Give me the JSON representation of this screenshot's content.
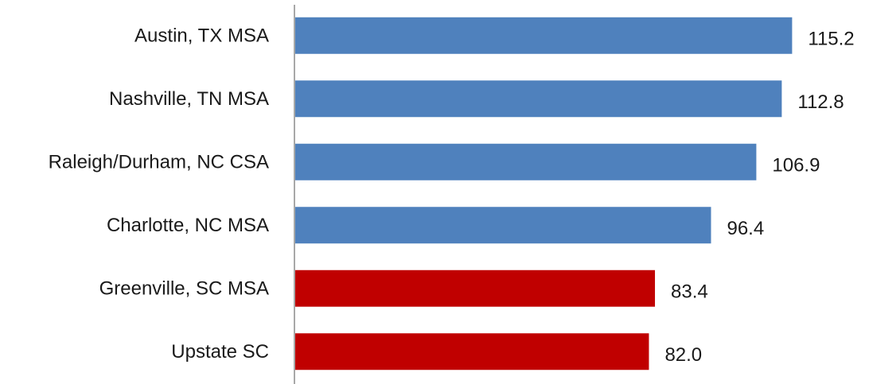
{
  "chart_data": {
    "type": "bar",
    "orientation": "horizontal",
    "title": "",
    "xlabel": "",
    "ylabel": "",
    "categories": [
      "Austin, TX MSA",
      "Nashville, TN MSA",
      "Raleigh/Durham, NC CSA",
      "Charlotte, NC MSA",
      "Greenville, SC MSA",
      "Upstate SC"
    ],
    "values": [
      115.2,
      112.8,
      106.9,
      96.4,
      83.4,
      82.0
    ],
    "value_labels": [
      "115.2",
      "112.8",
      "106.9",
      "96.4",
      "83.4",
      "82.0"
    ],
    "colors": [
      "#4F81BD",
      "#4F81BD",
      "#4F81BD",
      "#4F81BD",
      "#C00000",
      "#C00000"
    ],
    "xlim": [
      0,
      115.2
    ],
    "grid": false,
    "legend": "none"
  }
}
